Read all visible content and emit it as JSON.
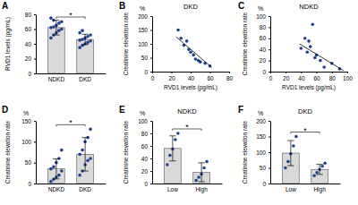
{
  "chart_data": [
    {
      "type": "bar",
      "panel_label": "A",
      "y_label": "RVD1 levels (pg/mL)",
      "categories": [
        "NDKD",
        "DKD"
      ],
      "values": [
        62,
        46
      ],
      "errors": [
        10,
        7
      ],
      "color": "#d9d9d9",
      "points": [
        [
          48,
          52,
          55,
          58,
          60,
          62,
          63,
          65,
          68,
          70,
          75,
          72
        ],
        [
          35,
          38,
          40,
          42,
          44,
          45,
          46,
          48,
          50,
          52,
          55,
          58
        ]
      ],
      "ylim": [
        0,
        80
      ],
      "yticks": [
        0,
        20,
        40,
        60,
        80
      ],
      "annotations": [
        {
          "text": "*"
        }
      ]
    },
    {
      "type": "scatter",
      "panel_label": "B",
      "title": "DKD",
      "y_unit": "%",
      "y_label": "Creatinine elevation rate",
      "x_label": "RVD1 levels (pg/mL)",
      "series": [
        {
          "type": "scatter",
          "color": "#1f3f8f",
          "x": [
            27,
            30,
            33,
            36,
            38,
            40,
            43,
            45,
            48,
            50,
            55,
            60
          ],
          "values": [
            150,
            120,
            95,
            110,
            80,
            70,
            60,
            45,
            40,
            35,
            30,
            20
          ]
        },
        {
          "type": "line",
          "color": "#000000",
          "x": [
            25,
            62
          ],
          "values": [
            125,
            15
          ]
        }
      ],
      "xlim": [
        0,
        80
      ],
      "xticks": [
        0,
        20,
        40,
        60,
        80
      ],
      "ylim": [
        0,
        200
      ],
      "yticks": [
        0,
        50,
        100,
        150,
        200
      ]
    },
    {
      "type": "scatter",
      "panel_label": "C",
      "title": "NDKD",
      "y_unit": "%",
      "y_label": "Creatinine elevation rate",
      "x_label": "RVD1 levels (pg/mL)",
      "series": [
        {
          "type": "scatter",
          "color": "#1f3f8f",
          "x": [
            40,
            45,
            48,
            50,
            52,
            55,
            58,
            60,
            65,
            70,
            80,
            90
          ],
          "values": [
            42,
            60,
            35,
            55,
            45,
            85,
            25,
            30,
            20,
            8,
            15,
            5
          ]
        },
        {
          "type": "line",
          "color": "#000000",
          "x": [
            38,
            95
          ],
          "values": [
            50,
            2
          ]
        }
      ],
      "xlim": [
        0,
        100
      ],
      "xticks": [
        0,
        20,
        40,
        60,
        80,
        100
      ],
      "ylim": [
        0,
        100
      ],
      "yticks": [
        0,
        20,
        40,
        60,
        80,
        100
      ]
    },
    {
      "type": "bar",
      "panel_label": "D",
      "y_unit": "%",
      "y_label": "Creatinine elevation rate",
      "categories": [
        "NDKD",
        "DKD"
      ],
      "values": [
        35,
        70
      ],
      "errors": [
        24,
        40
      ],
      "color": "#d9d9d9",
      "points": [
        [
          5,
          10,
          15,
          20,
          30,
          35,
          40,
          50,
          60,
          80
        ],
        [
          20,
          30,
          45,
          55,
          60,
          70,
          80,
          100,
          110,
          130
        ]
      ],
      "ylim": [
        0,
        150
      ],
      "yticks": [
        0,
        50,
        100,
        150
      ],
      "annotations": [
        {
          "text": "*"
        }
      ]
    },
    {
      "type": "bar",
      "panel_label": "E",
      "title": "NDKD",
      "y_unit": "%",
      "y_label": "Creatinine elevation rate",
      "categories": [
        "Low",
        "High"
      ],
      "values": [
        56,
        18
      ],
      "errors": [
        20,
        15
      ],
      "color": "#d9d9d9",
      "points": [
        [
          30,
          45,
          55,
          70,
          80
        ],
        [
          5,
          10,
          15,
          25,
          35
        ]
      ],
      "ylim": [
        0,
        100
      ],
      "yticks": [
        0,
        20,
        40,
        60,
        80,
        100
      ],
      "annotations": [
        {
          "text": "*"
        }
      ]
    },
    {
      "type": "bar",
      "panel_label": "F",
      "title": "DKD",
      "y_unit": "%",
      "y_label": "Creatinine elevation rate",
      "categories": [
        "Low",
        "High"
      ],
      "values": [
        97,
        45
      ],
      "errors": [
        40,
        16
      ],
      "color": "#d9d9d9",
      "points": [
        [
          50,
          70,
          95,
          120,
          150
        ],
        [
          25,
          35,
          45,
          55,
          65
        ]
      ],
      "ylim": [
        0,
        200
      ],
      "yticks": [
        0,
        50,
        100,
        150,
        200
      ],
      "annotations": [
        {
          "text": "*"
        }
      ]
    }
  ]
}
